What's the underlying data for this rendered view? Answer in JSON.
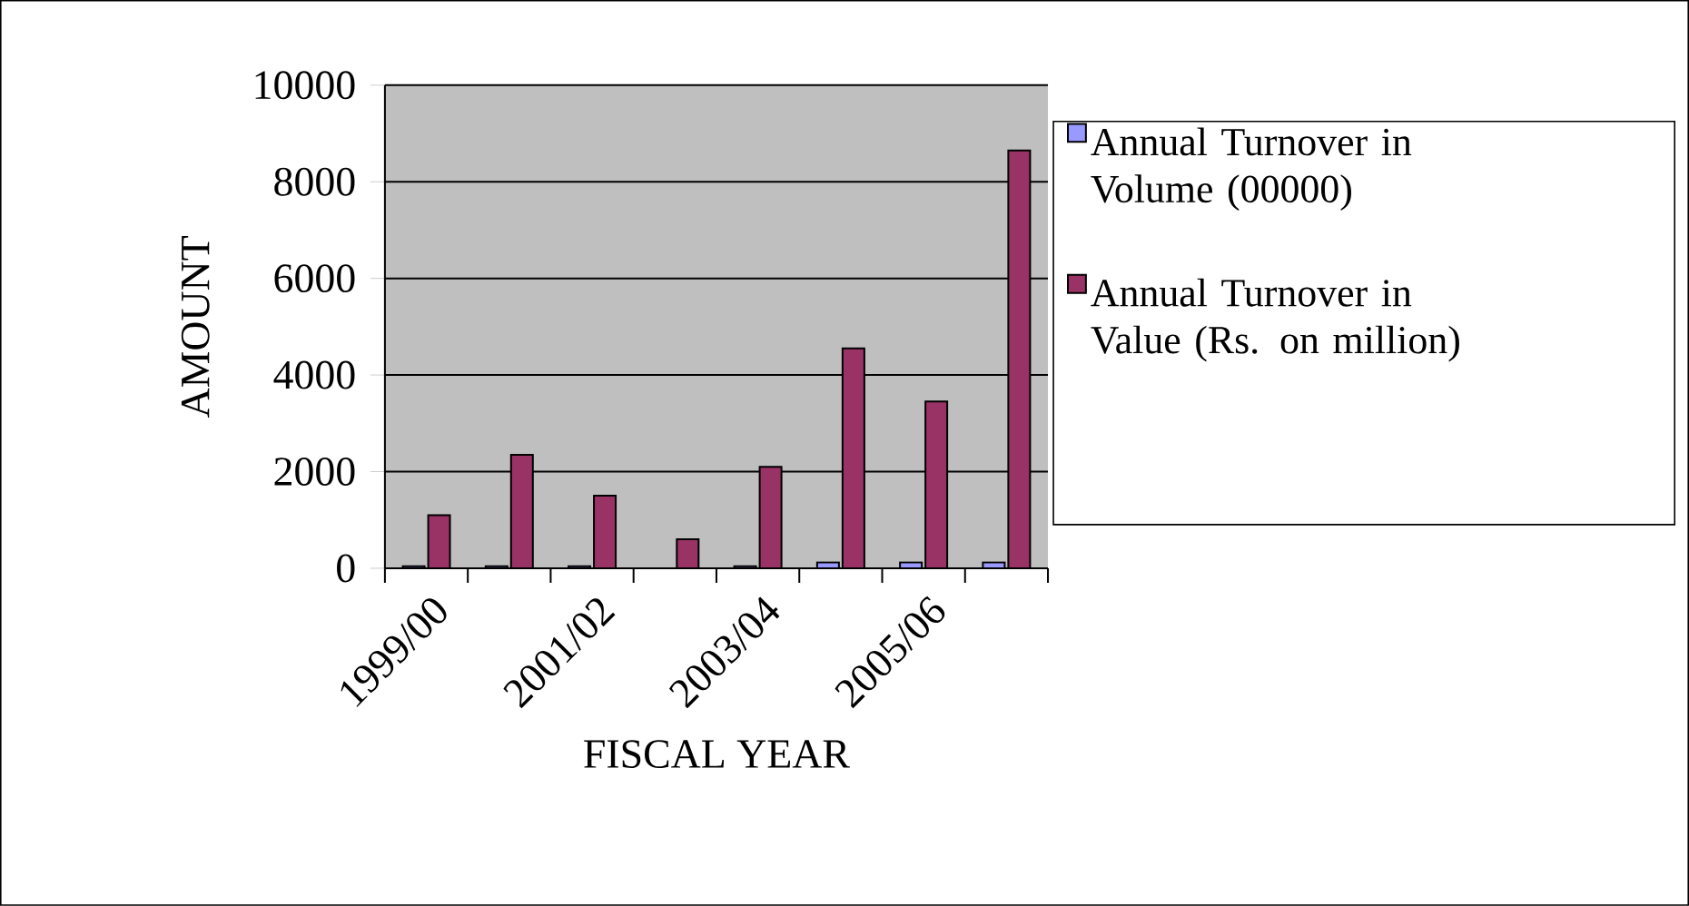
{
  "chart_data": {
    "type": "bar",
    "xlabel": "FISCAL YEAR",
    "ylabel": "AMOUNT",
    "categories": [
      "1999/00",
      null,
      "2001/02",
      null,
      "2003/04",
      null,
      "2005/06",
      null
    ],
    "series": [
      {
        "name": "Annual Turnover in Volume (00000)",
        "color": "#9999ff",
        "values": [
          40,
          40,
          40,
          null,
          40,
          120,
          120,
          120
        ]
      },
      {
        "name": "Annual Turnover in Value (Rs. on million)",
        "color": "#993366",
        "values": [
          1100,
          2350,
          1500,
          600,
          2100,
          4550,
          3450,
          8650
        ]
      }
    ],
    "ylim": [
      0,
      10000
    ],
    "yticks": [
      0,
      2000,
      4000,
      6000,
      8000,
      10000
    ],
    "grid": "y",
    "legend": "right"
  }
}
